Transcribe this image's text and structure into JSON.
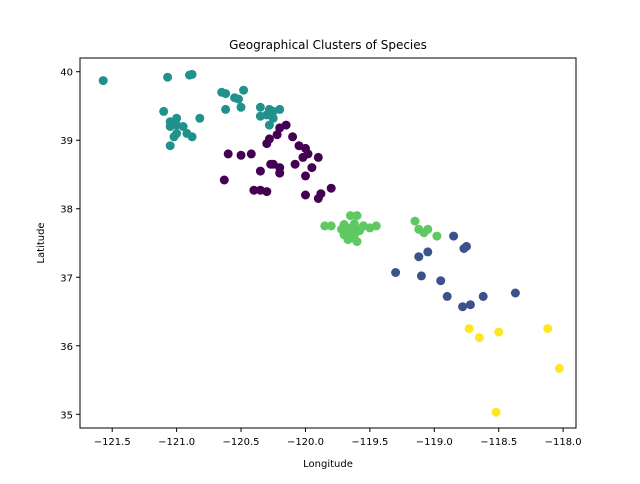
{
  "chart_data": {
    "type": "scatter",
    "title": "Geographical Clusters of Species",
    "xlabel": "Longitude",
    "ylabel": "Latitude",
    "xlim": [
      -121.75,
      -117.9
    ],
    "ylim": [
      34.8,
      40.2
    ],
    "xticks": [
      -121.5,
      -121.0,
      -120.5,
      -120.0,
      -119.5,
      -119.0,
      -118.5,
      -118.0
    ],
    "xtick_labels": [
      "−121.5",
      "−121.0",
      "−120.5",
      "−120.0",
      "−119.5",
      "−119.0",
      "−118.5",
      "−118.0"
    ],
    "yticks": [
      35,
      36,
      37,
      38,
      39,
      40
    ],
    "ytick_labels": [
      "35",
      "36",
      "37",
      "38",
      "39",
      "40"
    ],
    "grid": false,
    "legend": "none",
    "series": [
      {
        "color": "#440154",
        "points": [
          [
            -120.15,
            39.22
          ],
          [
            -120.2,
            39.18
          ],
          [
            -120.22,
            39.08
          ],
          [
            -120.1,
            39.05
          ],
          [
            -120.05,
            38.92
          ],
          [
            -120.0,
            38.88
          ],
          [
            -119.98,
            38.8
          ],
          [
            -120.02,
            38.75
          ],
          [
            -120.08,
            38.65
          ],
          [
            -120.2,
            38.6
          ],
          [
            -120.27,
            38.65
          ],
          [
            -120.3,
            38.95
          ],
          [
            -120.28,
            39.02
          ],
          [
            -120.42,
            38.8
          ],
          [
            -120.5,
            38.78
          ],
          [
            -120.6,
            38.8
          ],
          [
            -120.35,
            38.55
          ],
          [
            -120.2,
            38.52
          ],
          [
            -119.9,
            38.75
          ],
          [
            -119.95,
            38.6
          ],
          [
            -120.0,
            38.48
          ],
          [
            -120.63,
            38.42
          ],
          [
            -119.8,
            38.3
          ],
          [
            -120.0,
            38.2
          ],
          [
            -119.88,
            38.22
          ],
          [
            -119.9,
            38.15
          ],
          [
            -120.35,
            38.27
          ],
          [
            -120.3,
            38.25
          ],
          [
            -120.4,
            38.27
          ],
          [
            -120.25,
            38.65
          ]
        ]
      },
      {
        "color": "#3b528b",
        "points": [
          [
            -118.85,
            37.6
          ],
          [
            -118.75,
            37.45
          ],
          [
            -118.77,
            37.42
          ],
          [
            -119.05,
            37.37
          ],
          [
            -119.12,
            37.3
          ],
          [
            -119.3,
            37.07
          ],
          [
            -119.1,
            37.02
          ],
          [
            -118.95,
            36.95
          ],
          [
            -118.9,
            36.72
          ],
          [
            -118.62,
            36.72
          ],
          [
            -118.37,
            36.77
          ],
          [
            -118.72,
            36.6
          ],
          [
            -118.78,
            36.57
          ]
        ]
      },
      {
        "color": "#21918c",
        "points": [
          [
            -121.57,
            39.87
          ],
          [
            -121.07,
            39.92
          ],
          [
            -120.9,
            39.95
          ],
          [
            -120.88,
            39.96
          ],
          [
            -120.48,
            39.73
          ],
          [
            -120.65,
            39.7
          ],
          [
            -120.62,
            39.68
          ],
          [
            -120.55,
            39.62
          ],
          [
            -120.52,
            39.6
          ],
          [
            -120.5,
            39.48
          ],
          [
            -120.35,
            39.48
          ],
          [
            -120.2,
            39.45
          ],
          [
            -120.28,
            39.45
          ],
          [
            -120.25,
            39.42
          ],
          [
            -120.3,
            39.37
          ],
          [
            -120.25,
            39.32
          ],
          [
            -120.28,
            39.22
          ],
          [
            -120.35,
            39.35
          ],
          [
            -120.62,
            39.45
          ],
          [
            -121.1,
            39.42
          ],
          [
            -121.0,
            39.32
          ],
          [
            -121.05,
            39.27
          ],
          [
            -121.0,
            39.22
          ],
          [
            -121.05,
            39.2
          ],
          [
            -120.95,
            39.2
          ],
          [
            -120.82,
            39.32
          ],
          [
            -120.92,
            39.1
          ],
          [
            -120.88,
            39.05
          ],
          [
            -121.0,
            39.1
          ],
          [
            -121.02,
            39.05
          ],
          [
            -121.05,
            38.92
          ]
        ]
      },
      {
        "color": "#5ec962",
        "points": [
          [
            -119.65,
            37.9
          ],
          [
            -119.6,
            37.9
          ],
          [
            -119.7,
            37.77
          ],
          [
            -119.55,
            37.75
          ],
          [
            -119.65,
            37.72
          ],
          [
            -119.6,
            37.7
          ],
          [
            -119.72,
            37.7
          ],
          [
            -119.68,
            37.65
          ],
          [
            -119.62,
            37.62
          ],
          [
            -119.65,
            37.57
          ],
          [
            -119.6,
            37.52
          ],
          [
            -119.55,
            37.75
          ],
          [
            -119.45,
            37.75
          ],
          [
            -119.8,
            37.75
          ],
          [
            -119.85,
            37.75
          ],
          [
            -119.15,
            37.82
          ],
          [
            -119.12,
            37.7
          ],
          [
            -119.05,
            37.7
          ],
          [
            -119.08,
            37.65
          ],
          [
            -118.98,
            37.6
          ],
          [
            -119.7,
            37.62
          ],
          [
            -119.58,
            37.68
          ],
          [
            -119.5,
            37.72
          ],
          [
            -119.62,
            37.78
          ],
          [
            -119.67,
            37.55
          ]
        ]
      },
      {
        "color": "#fde725",
        "points": [
          [
            -118.73,
            36.25
          ],
          [
            -118.5,
            36.2
          ],
          [
            -118.65,
            36.12
          ],
          [
            -118.12,
            36.25
          ],
          [
            -118.03,
            35.67
          ],
          [
            -118.52,
            35.03
          ]
        ]
      }
    ]
  }
}
